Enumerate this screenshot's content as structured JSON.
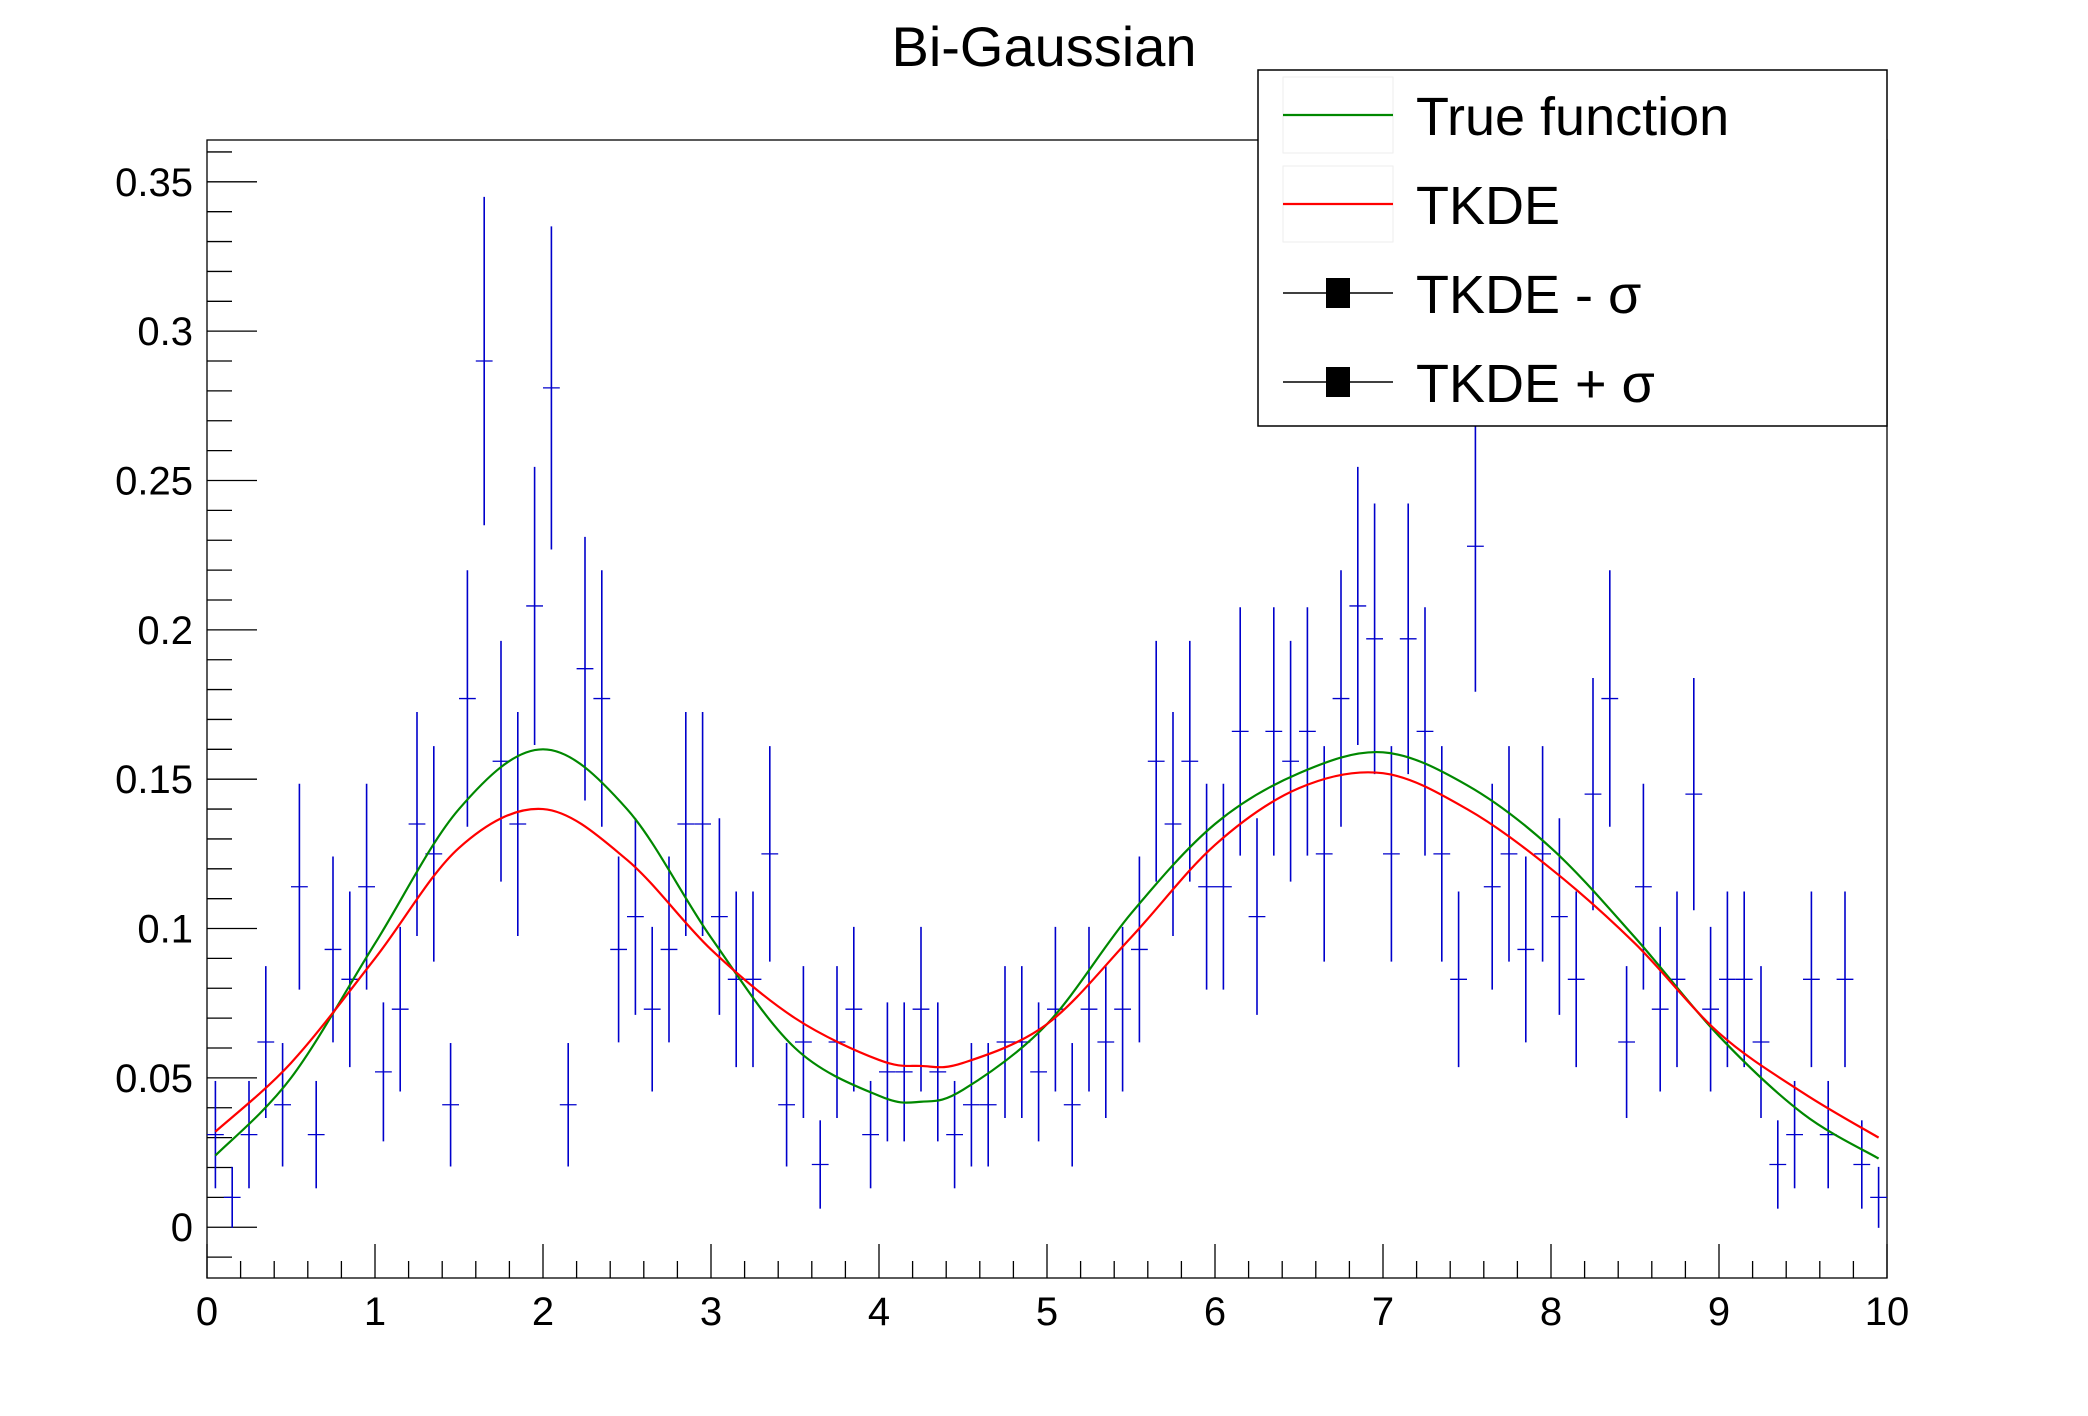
{
  "chart_data": {
    "type": "scatter",
    "title": "Bi-Gaussian",
    "xlabel": "",
    "ylabel": "",
    "xlim": [
      0,
      10
    ],
    "ylim": [
      -0.017,
      0.364
    ],
    "xticks": [
      "0",
      "1",
      "2",
      "3",
      "4",
      "5",
      "6",
      "7",
      "8",
      "9",
      "10"
    ],
    "yticks": [
      "0",
      "0.05",
      "0.1",
      "0.15",
      "0.2",
      "0.25",
      "0.3",
      "0.35"
    ],
    "grid": false,
    "legend_placement": "top-right",
    "colors": {
      "histogram": "#0000cc",
      "true_function": "#008800",
      "tkde": "#ff0000",
      "frame": "#000000"
    },
    "histogram": {
      "x": [
        0.05,
        0.15,
        0.25,
        0.35,
        0.45,
        0.55,
        0.65,
        0.75,
        0.85,
        0.95,
        1.05,
        1.15,
        1.25,
        1.35,
        1.45,
        1.55,
        1.65,
        1.75,
        1.85,
        1.95,
        2.05,
        2.15,
        2.25,
        2.35,
        2.45,
        2.55,
        2.65,
        2.75,
        2.85,
        2.95,
        3.05,
        3.15,
        3.25,
        3.35,
        3.45,
        3.55,
        3.65,
        3.75,
        3.85,
        3.95,
        4.05,
        4.15,
        4.25,
        4.35,
        4.45,
        4.55,
        4.65,
        4.75,
        4.85,
        4.95,
        5.05,
        5.15,
        5.25,
        5.35,
        5.45,
        5.55,
        5.65,
        5.75,
        5.85,
        5.95,
        6.05,
        6.15,
        6.25,
        6.35,
        6.45,
        6.55,
        6.65,
        6.75,
        6.85,
        6.95,
        7.05,
        7.15,
        7.25,
        7.35,
        7.45,
        7.55,
        7.65,
        7.75,
        7.85,
        7.95,
        8.05,
        8.15,
        8.25,
        8.35,
        8.45,
        8.55,
        8.65,
        8.75,
        8.85,
        8.95,
        9.05,
        9.15,
        9.25,
        9.35,
        9.45,
        9.55,
        9.65,
        9.75,
        9.85,
        9.95
      ],
      "y": [
        0.031,
        0.01,
        0.031,
        0.062,
        0.041,
        0.114,
        0.031,
        0.093,
        0.083,
        0.114,
        0.052,
        0.073,
        0.135,
        0.125,
        0.041,
        0.177,
        0.29,
        0.156,
        0.135,
        0.208,
        0.281,
        0.041,
        0.187,
        0.177,
        0.093,
        0.104,
        0.073,
        0.093,
        0.135,
        0.135,
        0.104,
        0.083,
        0.083,
        0.125,
        0.041,
        0.062,
        0.021,
        0.062,
        0.073,
        0.031,
        0.052,
        0.052,
        0.073,
        0.052,
        0.031,
        0.041,
        0.041,
        0.062,
        0.062,
        0.052,
        0.073,
        0.041,
        0.073,
        0.062,
        0.073,
        0.093,
        0.156,
        0.135,
        0.156,
        0.114,
        0.114,
        0.166,
        0.104,
        0.166,
        0.156,
        0.166,
        0.125,
        0.177,
        0.208,
        0.197,
        0.125,
        0.197,
        0.166,
        0.125,
        0.083,
        0.228,
        0.114,
        0.125,
        0.093,
        0.125,
        0.104,
        0.083,
        0.145,
        0.177,
        0.062,
        0.114,
        0.073,
        0.083,
        0.145,
        0.073,
        0.083,
        0.083,
        0.062,
        0.021,
        0.031,
        0.083,
        0.031,
        0.083,
        0.021,
        0.01
      ]
    },
    "series": [
      {
        "name": "True function",
        "x": [
          0.05,
          0.5,
          1,
          1.5,
          2,
          2.5,
          3,
          3.5,
          4,
          4.25,
          4.5,
          5,
          5.5,
          6,
          6.5,
          7,
          7.5,
          8,
          8.5,
          9,
          9.5,
          9.95
        ],
        "y": [
          0.024,
          0.05,
          0.095,
          0.14,
          0.16,
          0.14,
          0.097,
          0.06,
          0.044,
          0.042,
          0.046,
          0.068,
          0.105,
          0.135,
          0.152,
          0.159,
          0.148,
          0.127,
          0.097,
          0.064,
          0.038,
          0.023
        ]
      },
      {
        "name": "TKDE",
        "x": [
          0.05,
          0.5,
          1,
          1.5,
          2,
          2.5,
          3,
          3.5,
          4,
          4.25,
          4.5,
          5,
          5.5,
          6,
          6.5,
          7,
          7.5,
          8,
          8.5,
          9,
          9.5,
          9.95
        ],
        "y": [
          0.032,
          0.055,
          0.09,
          0.127,
          0.14,
          0.123,
          0.093,
          0.07,
          0.056,
          0.054,
          0.055,
          0.068,
          0.097,
          0.128,
          0.147,
          0.152,
          0.14,
          0.12,
          0.095,
          0.065,
          0.045,
          0.03
        ]
      }
    ],
    "legend": [
      {
        "label": "True function",
        "style": "line",
        "color": "#008800"
      },
      {
        "label": "TKDE",
        "style": "line",
        "color": "#ff0000"
      },
      {
        "label": "TKDE - σ",
        "style": "line-marker",
        "color": "#000000"
      },
      {
        "label": "TKDE + σ",
        "style": "line-marker",
        "color": "#000000"
      }
    ]
  }
}
